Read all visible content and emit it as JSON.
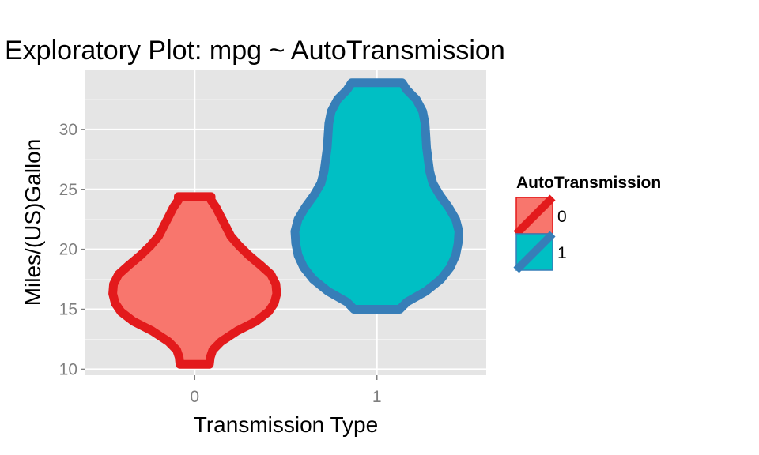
{
  "chart_data": {
    "type": "violin",
    "title": "Exploratory Plot: mpg ~ AutoTransmission",
    "xlabel": "Transmission Type",
    "ylabel": "Miles/(US)Gallon",
    "categories": [
      "0",
      "1"
    ],
    "ylim": [
      9.5,
      35.0
    ],
    "yticks": [
      10,
      15,
      20,
      25,
      30
    ],
    "grid": true,
    "legend": {
      "title": "AutoTransmission",
      "position": "right",
      "entries": [
        "0",
        "1"
      ]
    },
    "series": [
      {
        "category": "0",
        "fill": "#f8766d",
        "stroke": "#e31a1c",
        "min": 10.4,
        "max": 24.4,
        "profile": [
          [
            10.4,
            0.18
          ],
          [
            11.0,
            0.19
          ],
          [
            11.6,
            0.22
          ],
          [
            12.3,
            0.32
          ],
          [
            13.2,
            0.52
          ],
          [
            14.0,
            0.75
          ],
          [
            14.8,
            0.9
          ],
          [
            15.5,
            0.97
          ],
          [
            16.3,
            1.0
          ],
          [
            17.1,
            0.99
          ],
          [
            17.9,
            0.93
          ],
          [
            18.7,
            0.8
          ],
          [
            19.5,
            0.66
          ],
          [
            20.3,
            0.54
          ],
          [
            21.1,
            0.44
          ],
          [
            21.9,
            0.38
          ],
          [
            22.7,
            0.32
          ],
          [
            23.5,
            0.26
          ],
          [
            24.1,
            0.2
          ],
          [
            24.4,
            0.2
          ]
        ]
      },
      {
        "category": "1",
        "fill": "#00bfc4",
        "stroke": "#377eb8",
        "min": 15.0,
        "max": 33.9,
        "profile": [
          [
            15.0,
            0.29
          ],
          [
            15.6,
            0.38
          ],
          [
            16.5,
            0.62
          ],
          [
            17.5,
            0.81
          ],
          [
            18.5,
            0.93
          ],
          [
            19.5,
            1.0
          ],
          [
            20.5,
            1.03
          ],
          [
            21.5,
            1.04
          ],
          [
            22.5,
            1.0
          ],
          [
            23.5,
            0.91
          ],
          [
            24.5,
            0.8
          ],
          [
            25.5,
            0.71
          ],
          [
            26.5,
            0.67
          ],
          [
            27.5,
            0.65
          ],
          [
            28.5,
            0.63
          ],
          [
            29.5,
            0.62
          ],
          [
            30.5,
            0.61
          ],
          [
            31.5,
            0.58
          ],
          [
            32.5,
            0.5
          ],
          [
            33.3,
            0.38
          ],
          [
            33.9,
            0.32
          ]
        ]
      }
    ]
  }
}
